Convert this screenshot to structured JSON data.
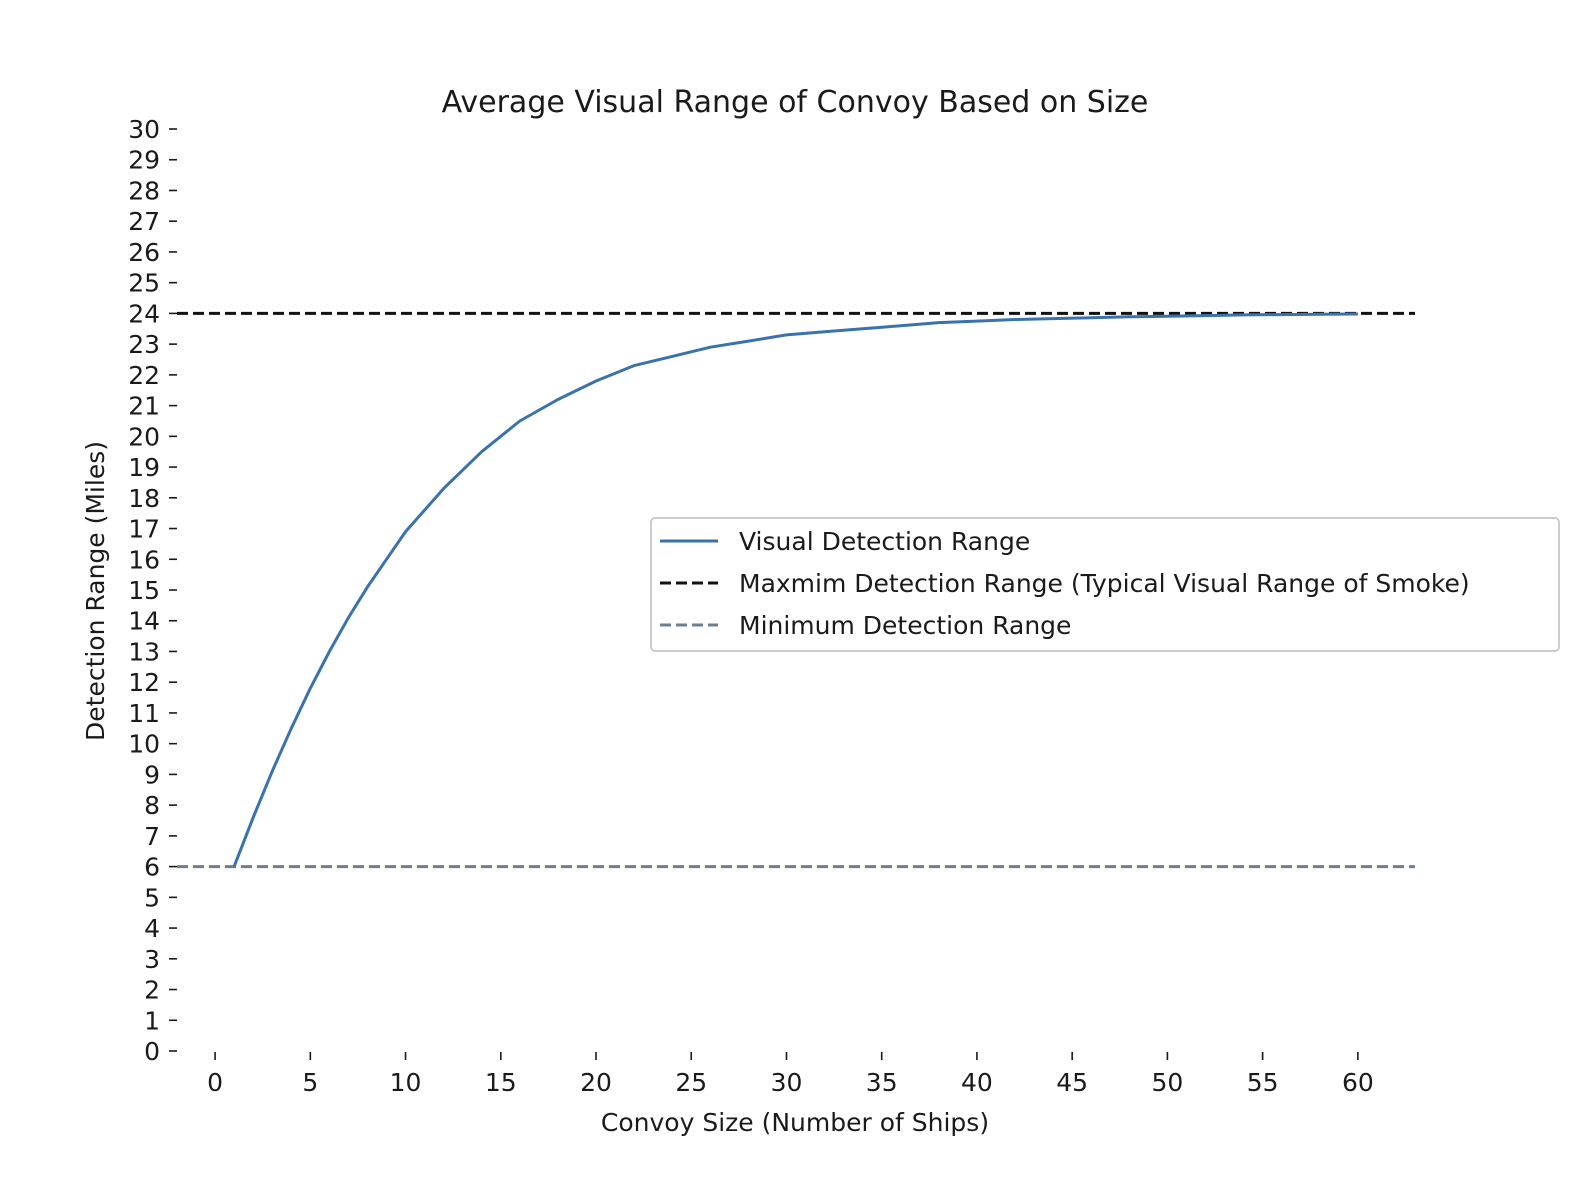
{
  "chart_data": {
    "type": "line",
    "title": "Average Visual Range of Convoy Based on Size",
    "xlabel": "Convoy Size (Number of Ships)",
    "ylabel": "Detection Range (Miles)",
    "xlim": [
      -2,
      63
    ],
    "ylim": [
      0,
      30
    ],
    "xticks": [
      0,
      5,
      10,
      15,
      20,
      25,
      30,
      35,
      40,
      45,
      50,
      55,
      60
    ],
    "yticks": [
      0,
      1,
      2,
      3,
      4,
      5,
      6,
      7,
      8,
      9,
      10,
      11,
      12,
      13,
      14,
      15,
      16,
      17,
      18,
      19,
      20,
      21,
      22,
      23,
      24,
      25,
      26,
      27,
      28,
      29,
      30
    ],
    "grid": false,
    "legend_position": "center-right",
    "series": [
      {
        "name": "Visual Detection Range",
        "style": "solid",
        "color": "#3a72ad",
        "x": [
          1,
          2,
          3,
          4,
          5,
          6,
          7,
          8,
          9,
          10,
          12,
          14,
          16,
          18,
          20,
          22,
          24,
          26,
          28,
          30,
          32,
          34,
          36,
          38,
          40,
          42,
          44,
          46,
          48,
          50,
          52,
          54,
          56,
          58,
          60
        ],
        "y": [
          6.0,
          7.6,
          9.1,
          10.5,
          11.8,
          13.0,
          14.1,
          15.1,
          16.0,
          16.9,
          18.3,
          19.5,
          20.5,
          21.2,
          21.8,
          22.3,
          22.6,
          22.9,
          23.1,
          23.3,
          23.4,
          23.5,
          23.6,
          23.7,
          23.75,
          23.8,
          23.83,
          23.86,
          23.89,
          23.91,
          23.93,
          23.95,
          23.96,
          23.97,
          23.98
        ]
      },
      {
        "name": "Maxmim Detection Range (Typical Visual Range of Smoke)",
        "style": "dashed",
        "color": "#111111",
        "x": [
          -2,
          63
        ],
        "y": [
          24,
          24
        ]
      },
      {
        "name": "Minimum Detection Range",
        "style": "dashed",
        "color": "#6e7d91",
        "x": [
          -2,
          63
        ],
        "y": [
          6,
          6
        ]
      }
    ]
  }
}
